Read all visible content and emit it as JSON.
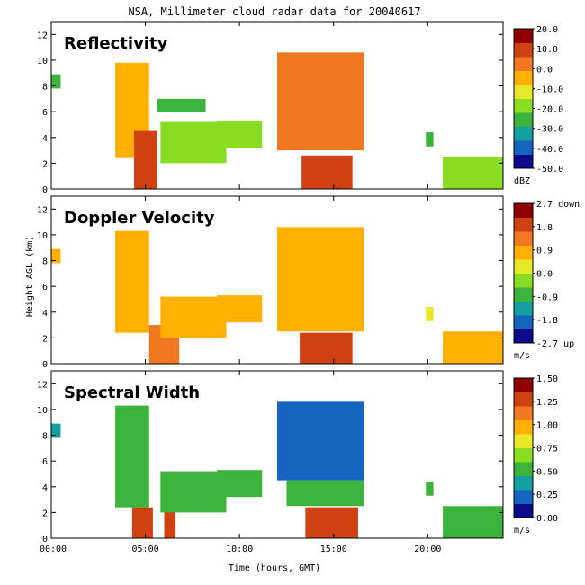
{
  "chart_data": {
    "type": "heatmap",
    "title": "NSA, Millimeter cloud radar data for 20040617",
    "xlabel": "Time (hours, GMT)",
    "ylabel": "Height AGL (km)",
    "xlim": [
      0,
      24
    ],
    "ylim": [
      0,
      13
    ],
    "x_ticks": [
      {
        "value": 0,
        "label": "00:00"
      },
      {
        "value": 5,
        "label": "05:00"
      },
      {
        "value": 10,
        "label": "10:00"
      },
      {
        "value": 15,
        "label": "15:00"
      },
      {
        "value": 20,
        "label": "20:00"
      }
    ],
    "y_ticks": [
      0,
      2,
      4,
      6,
      8,
      10,
      12
    ],
    "y_tick_labels": [
      "0",
      "2",
      "4",
      "6",
      "8",
      "10",
      "12"
    ],
    "grid": false,
    "colormap": [
      "#0a0a8a",
      "#1565c0",
      "#14a0a0",
      "#3cb43c",
      "#88dd22",
      "#e8e82a",
      "#ffb000",
      "#f07820",
      "#d04010",
      "#900000"
    ],
    "panels": [
      {
        "name": "Reflectivity",
        "units": "dBZ",
        "cb_range": [
          -50,
          20
        ],
        "cb_tick_values": [
          20,
          10,
          0,
          -10,
          -20,
          -30,
          -40,
          -50
        ],
        "cb_tick_labels": [
          "20.0",
          "10.0",
          "0.0",
          "-10.0",
          "-20.0",
          "-30.0",
          "-40.0",
          "-50.0"
        ],
        "cells": [
          {
            "t0": 0.0,
            "t1": 0.5,
            "z0": 7.8,
            "z1": 8.9,
            "v": 0.3
          },
          {
            "t0": 3.4,
            "t1": 5.2,
            "z0": 2.4,
            "z1": 9.8,
            "v": 0.72
          },
          {
            "t0": 4.4,
            "t1": 5.6,
            "z0": 0.0,
            "z1": 4.5,
            "v": 0.85
          },
          {
            "t0": 5.6,
            "t1": 8.2,
            "z0": 6.0,
            "z1": 7.0,
            "v": 0.35
          },
          {
            "t0": 5.8,
            "t1": 9.3,
            "z0": 2.0,
            "z1": 5.2,
            "v": 0.4
          },
          {
            "t0": 8.8,
            "t1": 11.2,
            "z0": 3.2,
            "z1": 5.3,
            "v": 0.42
          },
          {
            "t0": 12.0,
            "t1": 16.6,
            "z0": 3.0,
            "z1": 10.6,
            "v": 0.78
          },
          {
            "t0": 13.3,
            "t1": 16.0,
            "z0": 0.0,
            "z1": 2.6,
            "v": 0.93
          },
          {
            "t0": 19.9,
            "t1": 20.3,
            "z0": 3.3,
            "z1": 4.4,
            "v": 0.38
          },
          {
            "t0": 20.8,
            "t1": 24.0,
            "z0": 0.0,
            "z1": 2.5,
            "v": 0.45
          }
        ]
      },
      {
        "name": "Doppler Velocity",
        "units": "m/s",
        "cb_range": [
          -2.7,
          2.7
        ],
        "cb_tick_values": [
          2.7,
          1.8,
          0.9,
          0.0,
          -0.9,
          -1.8,
          -2.7
        ],
        "cb_tick_labels": [
          "2.7 down",
          "1.8",
          "0.9",
          "0.0",
          "-0.9",
          "-1.8",
          "-2.7 up"
        ],
        "cells": [
          {
            "t0": 0.0,
            "t1": 0.5,
            "z0": 7.8,
            "z1": 8.9,
            "v": 0.62
          },
          {
            "t0": 3.4,
            "t1": 5.2,
            "z0": 2.4,
            "z1": 10.3,
            "v": 0.64
          },
          {
            "t0": 5.2,
            "t1": 6.8,
            "z0": 0.0,
            "z1": 3.0,
            "v": 0.8
          },
          {
            "t0": 5.8,
            "t1": 9.3,
            "z0": 2.0,
            "z1": 5.2,
            "v": 0.62
          },
          {
            "t0": 8.8,
            "t1": 11.2,
            "z0": 3.2,
            "z1": 5.3,
            "v": 0.62
          },
          {
            "t0": 12.0,
            "t1": 16.6,
            "z0": 2.5,
            "z1": 10.6,
            "v": 0.64
          },
          {
            "t0": 13.2,
            "t1": 16.0,
            "z0": 0.0,
            "z1": 2.4,
            "v": 0.9
          },
          {
            "t0": 19.9,
            "t1": 20.3,
            "z0": 3.3,
            "z1": 4.4,
            "v": 0.6
          },
          {
            "t0": 20.8,
            "t1": 24.0,
            "z0": 0.0,
            "z1": 2.5,
            "v": 0.68
          }
        ]
      },
      {
        "name": "Spectral Width",
        "units": "m/s",
        "cb_range": [
          0.0,
          1.5
        ],
        "cb_tick_values": [
          1.5,
          1.25,
          1.0,
          0.75,
          0.5,
          0.25,
          0.0
        ],
        "cb_tick_labels": [
          "1.50",
          "1.25",
          "1.00",
          "0.75",
          "0.50",
          "0.25",
          "0.00"
        ],
        "cells": [
          {
            "t0": 0.0,
            "t1": 0.5,
            "z0": 7.8,
            "z1": 8.9,
            "v": 0.25
          },
          {
            "t0": 3.4,
            "t1": 5.2,
            "z0": 2.4,
            "z1": 10.3,
            "v": 0.35
          },
          {
            "t0": 4.3,
            "t1": 5.4,
            "z0": 0.0,
            "z1": 2.4,
            "v": 0.92
          },
          {
            "t0": 6.0,
            "t1": 6.6,
            "z0": 0.0,
            "z1": 5.0,
            "v": 0.85
          },
          {
            "t0": 5.8,
            "t1": 9.3,
            "z0": 2.0,
            "z1": 5.2,
            "v": 0.38
          },
          {
            "t0": 8.8,
            "t1": 11.2,
            "z0": 3.2,
            "z1": 5.3,
            "v": 0.3
          },
          {
            "t0": 12.0,
            "t1": 16.6,
            "z0": 4.5,
            "z1": 10.6,
            "v": 0.12
          },
          {
            "t0": 12.5,
            "t1": 16.6,
            "z0": 2.5,
            "z1": 4.5,
            "v": 0.35
          },
          {
            "t0": 13.5,
            "t1": 16.3,
            "z0": 0.0,
            "z1": 2.4,
            "v": 0.93
          },
          {
            "t0": 19.9,
            "t1": 20.3,
            "z0": 3.3,
            "z1": 4.4,
            "v": 0.3
          },
          {
            "t0": 20.8,
            "t1": 24.0,
            "z0": 0.0,
            "z1": 2.5,
            "v": 0.35
          }
        ]
      }
    ]
  }
}
